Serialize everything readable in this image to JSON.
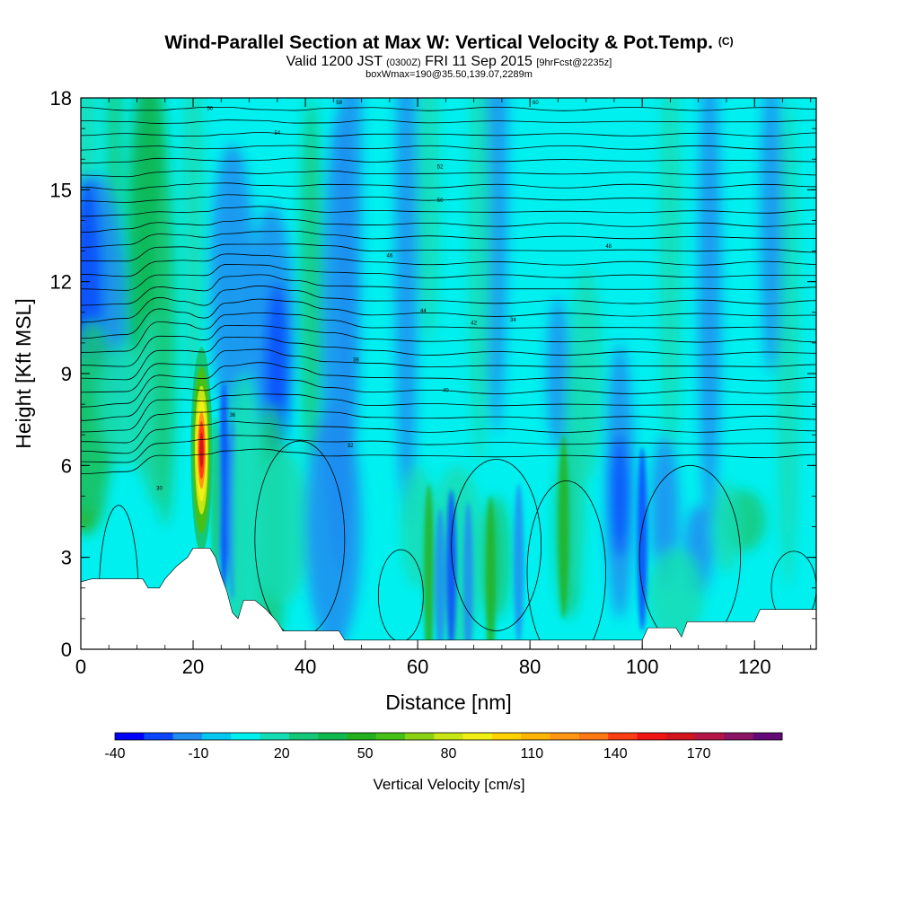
{
  "title": {
    "main": "Wind-Parallel Section at Max W: Vertical Velocity & Pot.Temp.",
    "copyright": "(C)",
    "valid_prefix": "Valid 1200 JST",
    "valid_utc": "(0300Z)",
    "valid_date": "FRI 11 Sep 2015",
    "forecast": "[9hrFcst@2235z]",
    "box_info": "boxWmax=190@35.50,139.07,2289m"
  },
  "chart_data": {
    "type": "heatmap",
    "xlabel": "Distance [nm]",
    "ylabel": "Height [Kft MSL]",
    "xlim": [
      0,
      131
    ],
    "ylim": [
      0,
      18
    ],
    "x_ticks": [
      "0",
      "20",
      "40",
      "60",
      "80",
      "100",
      "120"
    ],
    "y_ticks": [
      "0",
      "3",
      "6",
      "9",
      "12",
      "15",
      "18"
    ],
    "colorbar": {
      "label": "Vertical Velocity [cm/s]",
      "ticks": [
        "-40",
        "-10",
        "20",
        "50",
        "80",
        "110",
        "140",
        "170"
      ],
      "levels_min": -40,
      "levels_max": 190,
      "levels_step": 10,
      "colors": [
        "#0000ff",
        "#0a46ff",
        "#1e8cf0",
        "#00c8f0",
        "#00f0f0",
        "#14dcb4",
        "#14c878",
        "#10b850",
        "#24b01e",
        "#46c014",
        "#8cd214",
        "#c8e614",
        "#f0f014",
        "#ffd200",
        "#ffb400",
        "#ff9614",
        "#ff7814",
        "#ff3c14",
        "#f01414",
        "#d2141e",
        "#b41446",
        "#8c1464",
        "#640a78"
      ]
    },
    "max_w": {
      "x": 21.5,
      "z": 6.5,
      "value": 190
    },
    "theta_contour_labels": [
      "30",
      "32",
      "34",
      "36",
      "38",
      "40",
      "42",
      "44",
      "46",
      "48",
      "50",
      "52",
      "54",
      "56",
      "58",
      "60"
    ]
  }
}
